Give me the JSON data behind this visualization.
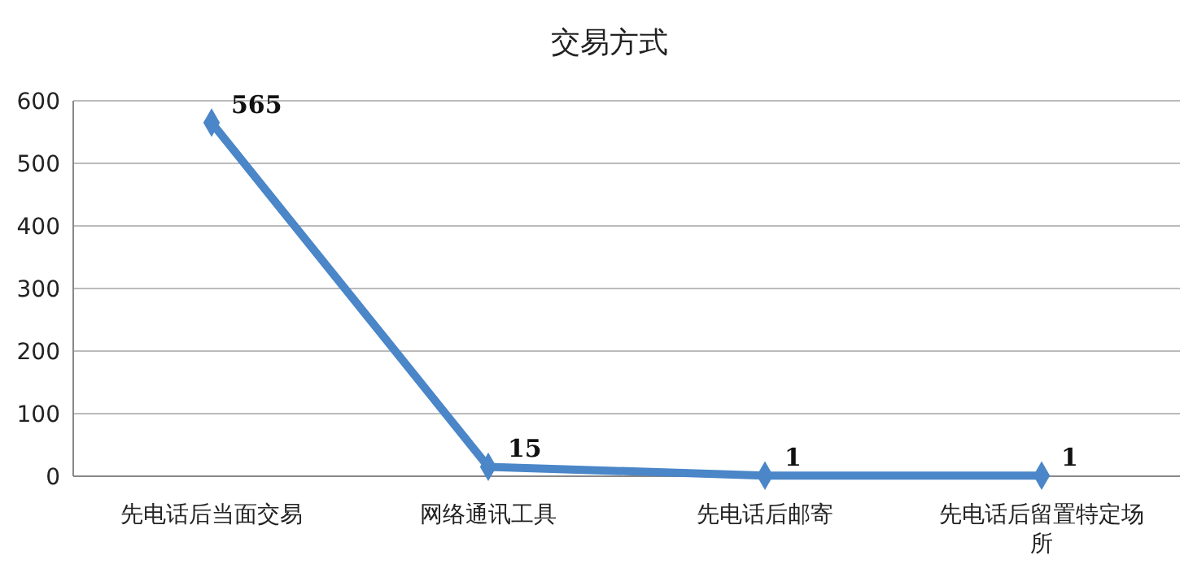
{
  "chart_data": {
    "type": "line",
    "title": "交易方式",
    "categories": [
      "先电话后当面交易",
      "网络通讯工具",
      "先电话后邮寄",
      "先电话后留置特定场所"
    ],
    "series": [
      {
        "color": "#4a86c8",
        "values": [
          565,
          15,
          1,
          1
        ]
      }
    ],
    "ylim": [
      0,
      600
    ],
    "yticks": [
      0,
      100,
      200,
      300,
      400,
      500,
      600
    ],
    "grid": "y",
    "marker": "diamond",
    "line_style": "solid",
    "data_labels": true
  }
}
